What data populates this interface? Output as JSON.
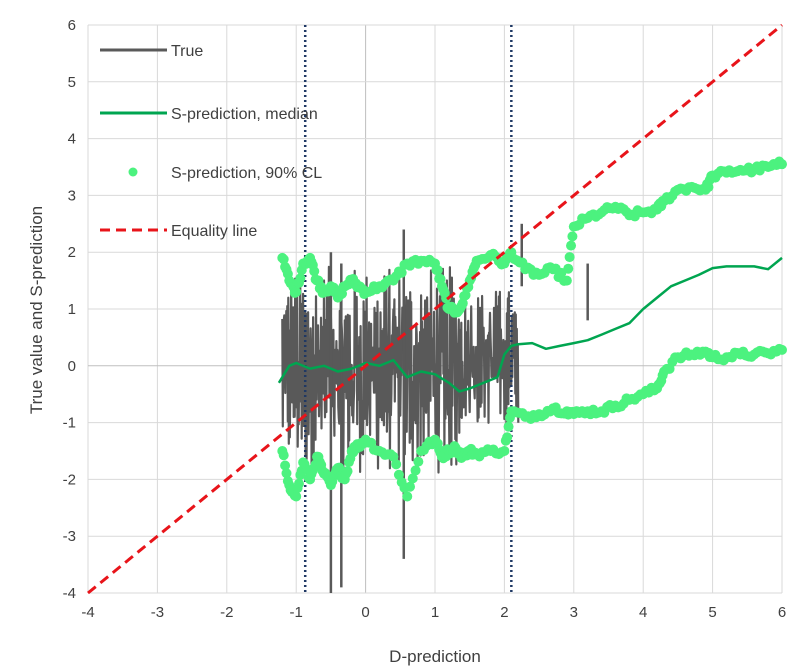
{
  "chart_data": {
    "type": "line",
    "xlabel": "D-prediction",
    "ylabel": "True value and S-prediction",
    "xlim": [
      -4,
      6
    ],
    "ylim": [
      -4,
      6
    ],
    "x_ticks": [
      "-4",
      "-3",
      "-2",
      "-1",
      "0",
      "1",
      "2",
      "3",
      "4",
      "5",
      "6"
    ],
    "y_ticks": [
      "-4",
      "-3",
      "-2",
      "-1",
      "0",
      "1",
      "2",
      "3",
      "4",
      "5",
      "6"
    ],
    "grid": true,
    "legend_position": "top-left",
    "vertical_reference_lines": [
      -0.87,
      2.1
    ],
    "series": [
      {
        "name": "True",
        "style": "line",
        "color": "#595959",
        "noisy_segments": [
          {
            "x_from": -1.2,
            "x_to": 1.35,
            "y_low": -2.7,
            "y_high": 2.7
          },
          {
            "x_from": 1.35,
            "x_to": 2.2,
            "y_low": -1.6,
            "y_high": 2.0
          }
        ],
        "extra_spikes": [
          {
            "x": -0.5,
            "y_low": -4.0,
            "y_high": 2.0
          },
          {
            "x": -0.35,
            "y_low": -3.9,
            "y_high": 1.8
          },
          {
            "x": 0.55,
            "y_low": -3.4,
            "y_high": 2.4
          },
          {
            "x": 2.25,
            "y_low": 1.4,
            "y_high": 2.5
          },
          {
            "x": 3.2,
            "y_low": 0.8,
            "y_high": 1.8
          }
        ]
      },
      {
        "name": "S-prediction, median",
        "style": "line",
        "color": "#00a550",
        "x": [
          -1.25,
          -1.1,
          -1.0,
          -0.8,
          -0.6,
          -0.4,
          -0.2,
          0.0,
          0.2,
          0.4,
          0.6,
          0.8,
          1.0,
          1.2,
          1.35,
          1.5,
          1.7,
          1.9,
          2.0,
          2.1,
          2.2,
          2.4,
          2.6,
          2.8,
          3.0,
          3.2,
          3.4,
          3.6,
          3.8,
          4.0,
          4.2,
          4.4,
          4.6,
          4.8,
          5.0,
          5.2,
          5.4,
          5.6,
          5.8,
          6.0
        ],
        "y": [
          -0.3,
          0.0,
          0.05,
          -0.05,
          0.0,
          -0.1,
          -0.05,
          0.05,
          0.0,
          0.1,
          -0.2,
          -0.1,
          -0.15,
          -0.3,
          -0.45,
          -0.4,
          -0.3,
          -0.2,
          0.2,
          0.35,
          0.38,
          0.4,
          0.3,
          0.35,
          0.4,
          0.45,
          0.55,
          0.65,
          0.75,
          1.0,
          1.2,
          1.4,
          1.5,
          1.6,
          1.72,
          1.75,
          1.75,
          1.75,
          1.7,
          1.9
        ]
      },
      {
        "name": "S-prediction, 90% CL",
        "style": "markers",
        "color": "#4cf27f",
        "upper": {
          "x": [
            -1.2,
            -1.1,
            -1.0,
            -0.9,
            -0.8,
            -0.7,
            -0.6,
            -0.5,
            -0.4,
            -0.3,
            -0.2,
            -0.1,
            0.0,
            0.2,
            0.4,
            0.6,
            0.8,
            1.0,
            1.1,
            1.2,
            1.3,
            1.4,
            1.5,
            1.6,
            1.8,
            2.0,
            2.1,
            2.3,
            2.5,
            2.7,
            2.9,
            3.0,
            3.2,
            3.4,
            3.6,
            3.8,
            4.0,
            4.2,
            4.3,
            4.5,
            4.7,
            4.9,
            5.0,
            5.2,
            5.4,
            5.6,
            5.8,
            6.0
          ],
          "y": [
            1.9,
            1.5,
            1.3,
            1.8,
            1.9,
            1.5,
            1.3,
            1.4,
            1.2,
            1.4,
            1.5,
            1.4,
            1.3,
            1.4,
            1.5,
            1.8,
            1.85,
            1.8,
            1.4,
            1.0,
            0.95,
            1.1,
            1.5,
            1.85,
            1.95,
            1.8,
            2.0,
            1.7,
            1.6,
            1.7,
            1.5,
            2.45,
            2.6,
            2.7,
            2.8,
            2.65,
            2.7,
            2.75,
            2.9,
            3.1,
            3.15,
            3.1,
            3.35,
            3.4,
            3.45,
            3.45,
            3.5,
            3.55
          ]
        },
        "lower": {
          "x": [
            -1.2,
            -1.1,
            -1.0,
            -0.9,
            -0.8,
            -0.7,
            -0.6,
            -0.5,
            -0.4,
            -0.3,
            -0.2,
            -0.1,
            0.0,
            0.2,
            0.4,
            0.6,
            0.8,
            1.0,
            1.1,
            1.2,
            1.3,
            1.4,
            1.5,
            1.6,
            1.8,
            2.0,
            2.1,
            2.3,
            2.5,
            2.7,
            2.9,
            3.0,
            3.2,
            3.4,
            3.6,
            3.8,
            4.0,
            4.2,
            4.3,
            4.5,
            4.7,
            4.9,
            5.0,
            5.2,
            5.4,
            5.6,
            5.8,
            6.0
          ],
          "y": [
            -1.5,
            -2.1,
            -2.3,
            -1.7,
            -2.0,
            -1.6,
            -1.9,
            -2.1,
            -1.8,
            -2.0,
            -1.5,
            -1.4,
            -1.3,
            -1.5,
            -1.6,
            -2.3,
            -1.5,
            -1.3,
            -1.6,
            -1.5,
            -1.45,
            -1.6,
            -1.5,
            -1.55,
            -1.5,
            -1.5,
            -0.8,
            -0.9,
            -0.85,
            -0.75,
            -0.8,
            -0.85,
            -0.8,
            -0.8,
            -0.7,
            -0.6,
            -0.5,
            -0.4,
            -0.1,
            0.15,
            0.2,
            0.25,
            0.15,
            0.15,
            0.2,
            0.2,
            0.22,
            0.28
          ]
        }
      },
      {
        "name": "Equality line",
        "style": "dashed",
        "color": "#e8141a",
        "x": [
          -4,
          6
        ],
        "y": [
          -4,
          6
        ]
      }
    ]
  }
}
